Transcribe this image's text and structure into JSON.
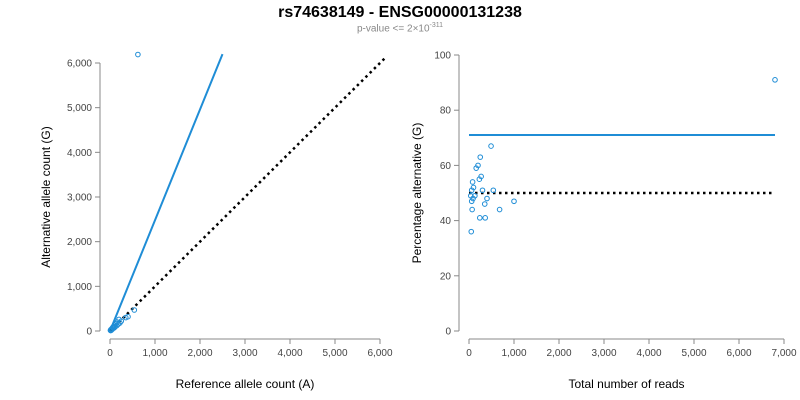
{
  "title": "rs74638149 - ENSG00000131238",
  "subtitle": {
    "prefix": "p-value <= 2×10",
    "exponent": "-311"
  },
  "chart_data": [
    {
      "type": "scatter",
      "xlabel": "Reference allele count (A)",
      "ylabel": "Alternative allele count (G)",
      "xlim": [
        0,
        6000
      ],
      "ylim": [
        0,
        6000
      ],
      "xticks": [
        0,
        1000,
        2000,
        3000,
        4000,
        5000,
        6000
      ],
      "xtick_labels": [
        "0",
        "1,000",
        "2,000",
        "3,000",
        "4,000",
        "5,000",
        "6,000"
      ],
      "yticks": [
        0,
        1000,
        2000,
        3000,
        4000,
        5000,
        6000
      ],
      "ytick_labels": [
        "0",
        "1,000",
        "2,000",
        "3,000",
        "4,000",
        "5,000",
        "6,000"
      ],
      "grid": false,
      "point_color": "#1f8dd6",
      "points": [
        {
          "x": 620,
          "y": 6190
        },
        {
          "x": 540,
          "y": 470
        },
        {
          "x": 400,
          "y": 320
        },
        {
          "x": 350,
          "y": 300
        },
        {
          "x": 250,
          "y": 220
        },
        {
          "x": 220,
          "y": 180
        },
        {
          "x": 200,
          "y": 260
        },
        {
          "x": 180,
          "y": 150
        },
        {
          "x": 160,
          "y": 200
        },
        {
          "x": 150,
          "y": 120
        },
        {
          "x": 130,
          "y": 160
        },
        {
          "x": 110,
          "y": 90
        },
        {
          "x": 100,
          "y": 130
        },
        {
          "x": 90,
          "y": 70
        },
        {
          "x": 80,
          "y": 100
        },
        {
          "x": 70,
          "y": 60
        },
        {
          "x": 60,
          "y": 80
        },
        {
          "x": 50,
          "y": 40
        },
        {
          "x": 40,
          "y": 50
        },
        {
          "x": 30,
          "y": 20
        },
        {
          "x": 20,
          "y": 30
        },
        {
          "x": 15,
          "y": 10
        },
        {
          "x": 10,
          "y": 15
        }
      ],
      "lines": [
        {
          "style": "solid",
          "color": "#1f8dd6",
          "x": [
            0,
            2500
          ],
          "y": [
            0,
            6200
          ]
        },
        {
          "style": "dotted",
          "color": "#000000",
          "x": [
            0,
            6100
          ],
          "y": [
            0,
            6100
          ]
        }
      ]
    },
    {
      "type": "scatter",
      "xlabel": "Total number of reads",
      "ylabel": "Percentage alternative (G)",
      "xlim": [
        0,
        7000
      ],
      "ylim": [
        0,
        100
      ],
      "xticks": [
        0,
        1000,
        2000,
        3000,
        4000,
        5000,
        6000,
        7000
      ],
      "xtick_labels": [
        "0",
        "1,000",
        "2,000",
        "3,000",
        "4,000",
        "5,000",
        "6,000",
        "7,000"
      ],
      "yticks": [
        0,
        20,
        40,
        60,
        80,
        100
      ],
      "ytick_labels": [
        "0",
        "20",
        "40",
        "60",
        "80",
        "100"
      ],
      "grid": false,
      "point_color": "#1f8dd6",
      "points": [
        {
          "x": 6800,
          "y": 91
        },
        {
          "x": 490,
          "y": 67
        },
        {
          "x": 250,
          "y": 63
        },
        {
          "x": 200,
          "y": 60
        },
        {
          "x": 160,
          "y": 59
        },
        {
          "x": 270,
          "y": 56
        },
        {
          "x": 230,
          "y": 55
        },
        {
          "x": 80,
          "y": 54
        },
        {
          "x": 100,
          "y": 52
        },
        {
          "x": 60,
          "y": 51
        },
        {
          "x": 300,
          "y": 51
        },
        {
          "x": 540,
          "y": 51
        },
        {
          "x": 40,
          "y": 49
        },
        {
          "x": 130,
          "y": 49
        },
        {
          "x": 90,
          "y": 48
        },
        {
          "x": 400,
          "y": 48
        },
        {
          "x": 60,
          "y": 47
        },
        {
          "x": 1000,
          "y": 47
        },
        {
          "x": 350,
          "y": 46
        },
        {
          "x": 70,
          "y": 44
        },
        {
          "x": 680,
          "y": 44
        },
        {
          "x": 240,
          "y": 41
        },
        {
          "x": 360,
          "y": 41
        },
        {
          "x": 50,
          "y": 36
        }
      ],
      "lines": [
        {
          "style": "solid",
          "color": "#1f8dd6",
          "x": [
            0,
            6800
          ],
          "y": [
            71,
            71
          ]
        },
        {
          "style": "dotted",
          "color": "#000000",
          "x": [
            0,
            6800
          ],
          "y": [
            50,
            50
          ]
        }
      ]
    }
  ]
}
